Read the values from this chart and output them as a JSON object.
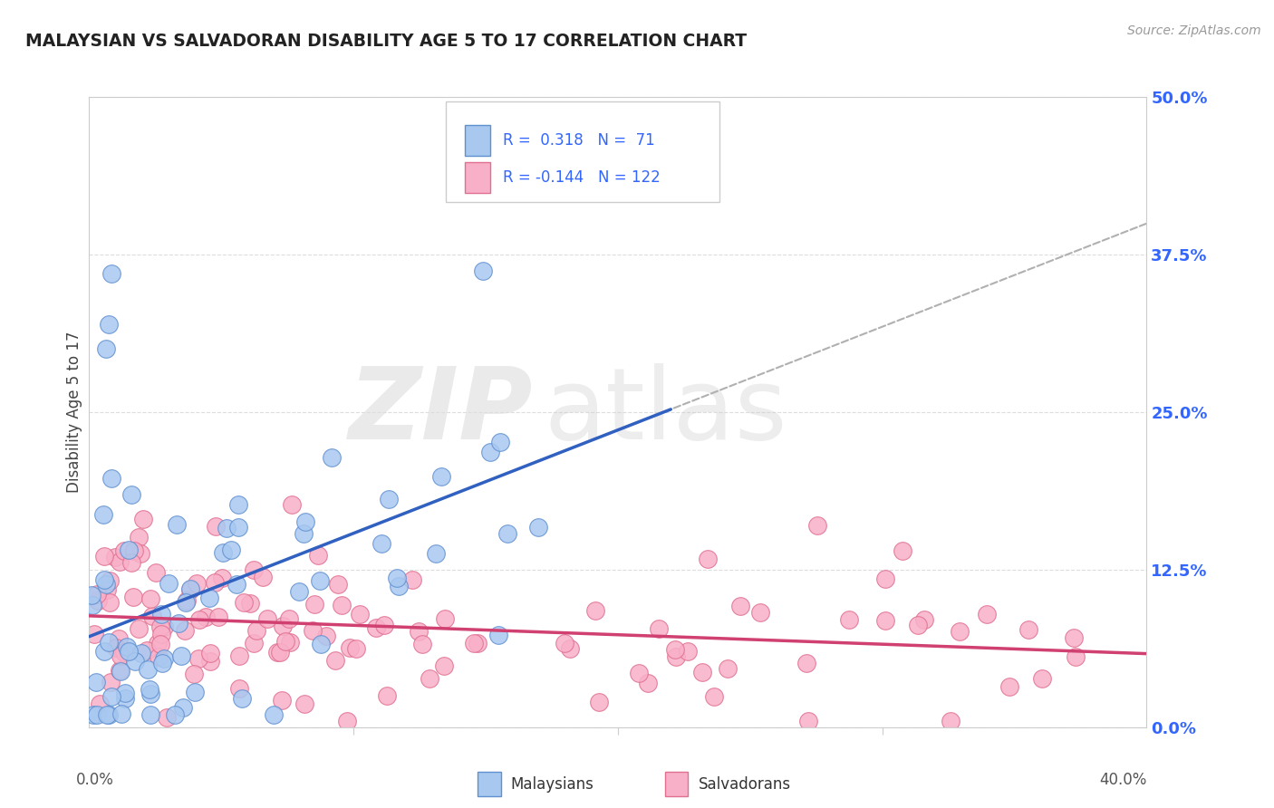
{
  "title": "MALAYSIAN VS SALVADORAN DISABILITY AGE 5 TO 17 CORRELATION CHART",
  "source": "Source: ZipAtlas.com",
  "ylabel": "Disability Age 5 to 17",
  "ytick_values": [
    0.0,
    12.5,
    25.0,
    37.5,
    50.0
  ],
  "xlim": [
    0.0,
    40.0
  ],
  "ylim": [
    0.0,
    50.0
  ],
  "malaysian_R": 0.318,
  "malaysian_N": 71,
  "salvadoran_R": -0.144,
  "salvadoran_N": 122,
  "blue_scatter_color": "#A8C8F0",
  "blue_edge_color": "#6090D0",
  "blue_line_color": "#3060C0",
  "pink_scatter_color": "#F8B0C8",
  "pink_edge_color": "#E07090",
  "pink_line_color": "#D04070",
  "gray_dash_color": "#B0B0B0",
  "legend_text_color": "#3366FF",
  "grid_color": "#DDDDDD",
  "spine_color": "#CCCCCC",
  "title_color": "#222222",
  "source_color": "#999999",
  "ylabel_color": "#444444",
  "tick_label_color": "#3366FF",
  "watermark_zip_color": "#DDDDDD",
  "watermark_atlas_color": "#CCCCCC"
}
